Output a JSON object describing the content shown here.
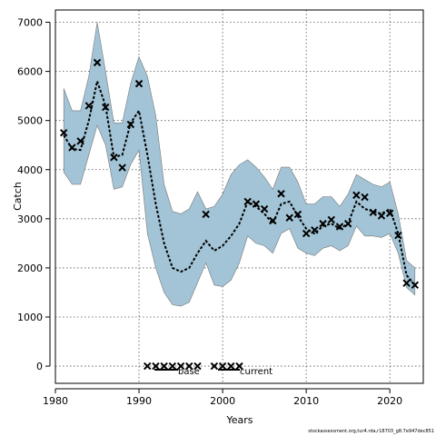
{
  "chart_data": {
    "type": "line",
    "xlabel": "Years",
    "ylabel": "Catch",
    "xlim": [
      1980,
      2024
    ],
    "ylim": [
      -350,
      7250
    ],
    "x_ticks": [
      1980,
      1990,
      2000,
      2010,
      2020
    ],
    "y_ticks": [
      0,
      1000,
      2000,
      3000,
      4000,
      5000,
      6000,
      7000
    ],
    "grid": true,
    "colors": {
      "band": "#a3c4d6",
      "band_edge": "#777777",
      "median": "#000000",
      "points": "#000000"
    },
    "band": {
      "x": [
        1981,
        1982,
        1983,
        1984,
        1985,
        1986,
        1987,
        1988,
        1989,
        1990,
        1991,
        1992,
        1993,
        1994,
        1995,
        1996,
        1997,
        1998,
        1999,
        2000,
        2001,
        2002,
        2003,
        2004,
        2005,
        2006,
        2007,
        2008,
        2009,
        2010,
        2011,
        2012,
        2013,
        2014,
        2015,
        2016,
        2017,
        2018,
        2019,
        2020,
        2021,
        2022,
        2023
      ],
      "lower": [
        3950,
        3700,
        3700,
        4300,
        4900,
        4500,
        3600,
        3650,
        4100,
        4400,
        2700,
        2000,
        1500,
        1250,
        1220,
        1300,
        1700,
        2100,
        1650,
        1620,
        1750,
        2100,
        2650,
        2500,
        2450,
        2300,
        2700,
        2800,
        2400,
        2300,
        2250,
        2400,
        2450,
        2350,
        2450,
        2850,
        2650,
        2650,
        2620,
        2700,
        2300,
        1600,
        1450
      ],
      "upper": [
        5650,
        5200,
        5200,
        5900,
        7000,
        6000,
        4950,
        4950,
        5750,
        6300,
        5900,
        5100,
        3700,
        3150,
        3100,
        3200,
        3550,
        3200,
        3250,
        3500,
        3900,
        4100,
        4200,
        4050,
        3850,
        3600,
        4050,
        4050,
        3750,
        3300,
        3300,
        3450,
        3450,
        3250,
        3500,
        3900,
        3800,
        3700,
        3650,
        3750,
        3100,
        2150,
        2000
      ]
    },
    "median": {
      "x": [
        1981,
        1982,
        1983,
        1984,
        1985,
        1986,
        1987,
        1988,
        1989,
        1990,
        1991,
        1992,
        1993,
        1994,
        1995,
        1996,
        1997,
        1998,
        1999,
        2000,
        2001,
        2002,
        2003,
        2004,
        2005,
        2006,
        2007,
        2008,
        2009,
        2010,
        2011,
        2012,
        2013,
        2014,
        2015,
        2016,
        2017,
        2018,
        2019,
        2020,
        2021,
        2022,
        2023
      ],
      "y": [
        4700,
        4420,
        4400,
        5000,
        5800,
        5300,
        4250,
        4300,
        4950,
        5200,
        4300,
        3300,
        2500,
        2000,
        1920,
        2000,
        2300,
        2550,
        2350,
        2450,
        2650,
        2900,
        3350,
        3250,
        3100,
        2900,
        3300,
        3350,
        3050,
        2800,
        2700,
        2850,
        2900,
        2800,
        2900,
        3350,
        3200,
        3150,
        3100,
        3200,
        2700,
        1850,
        1650
      ]
    },
    "points": {
      "x": [
        1981,
        1982,
        1983,
        1984,
        1985,
        1986,
        1987,
        1988,
        1989,
        1990,
        1998,
        2003,
        2004,
        2005,
        2006,
        2007,
        2008,
        2009,
        2010,
        2011,
        2012,
        2013,
        2014,
        2015,
        2016,
        2017,
        2018,
        2019,
        2020,
        2021,
        2022,
        2023
      ],
      "y": [
        4750,
        4450,
        4580,
        5300,
        6180,
        5270,
        4250,
        4040,
        4920,
        5750,
        3090,
        3350,
        3300,
        3200,
        2960,
        3510,
        3020,
        3090,
        2700,
        2770,
        2900,
        2980,
        2840,
        2900,
        3480,
        3440,
        3130,
        3060,
        3110,
        2660,
        1690,
        1650
      ]
    },
    "zero_points": {
      "x": [
        1991,
        1992,
        1993,
        1994,
        1995,
        1996,
        1997,
        1999,
        2000,
        2001,
        2002
      ],
      "y": [
        0,
        0,
        0,
        0,
        0,
        0,
        0,
        0,
        0,
        0,
        0
      ]
    },
    "legend": {
      "base_label": "base",
      "current_label": "current"
    }
  },
  "footer": "stockassessment.org,tur4.rda,r18703_g8:7e947dec851"
}
